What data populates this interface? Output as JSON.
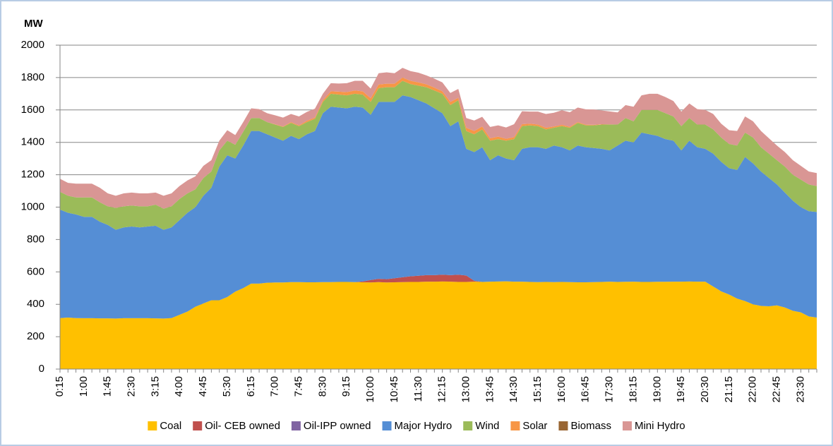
{
  "chart_data": {
    "type": "stacked_area",
    "y_label": "MW",
    "categories": [
      "0:15",
      null,
      null,
      "1:00",
      null,
      null,
      "1:45",
      null,
      null,
      "2:30",
      null,
      null,
      "3:15",
      null,
      null,
      "4:00",
      null,
      null,
      "4:45",
      null,
      null,
      "5:30",
      null,
      null,
      "6:15",
      null,
      null,
      "7:00",
      null,
      null,
      "7:45",
      null,
      null,
      "8:30",
      null,
      null,
      "9:15",
      null,
      null,
      "10:00",
      null,
      null,
      "10:45",
      null,
      null,
      "11:30",
      null,
      null,
      "12:15",
      null,
      null,
      "13:00",
      null,
      null,
      "13:45",
      null,
      null,
      "14:30",
      null,
      null,
      "15:15",
      null,
      null,
      "16:00",
      null,
      null,
      "16:45",
      null,
      null,
      "17:30",
      null,
      null,
      "18:15",
      null,
      null,
      "19:00",
      null,
      null,
      "19:45",
      null,
      null,
      "20:30",
      null,
      null,
      "21:15",
      null,
      null,
      "22:00",
      null,
      null,
      "22:45",
      null,
      null,
      "23:30",
      null,
      null
    ],
    "series": [
      {
        "name": "Coal",
        "color": "#ffc000",
        "values": [
          315,
          318,
          315,
          314,
          314,
          313,
          313,
          312,
          314,
          314,
          314,
          314,
          313,
          312,
          315,
          335,
          355,
          385,
          405,
          425,
          425,
          445,
          478,
          500,
          528,
          528,
          533,
          535,
          535,
          537,
          537,
          536,
          536,
          537,
          537,
          538,
          538,
          537,
          536,
          535,
          537,
          535,
          536,
          537,
          538,
          538,
          540,
          540,
          541,
          540,
          538,
          538,
          540,
          538,
          540,
          541,
          542,
          540,
          540,
          538,
          537,
          538,
          537,
          538,
          537,
          536,
          536,
          537,
          538,
          540,
          538,
          539,
          540,
          538,
          538,
          539,
          539,
          540,
          540,
          541,
          540,
          540,
          510,
          480,
          460,
          435,
          420,
          400,
          390,
          388,
          393,
          380,
          360,
          350,
          325,
          318
        ]
      },
      {
        "name": "Oil- CEB owned",
        "color": "#c0504d",
        "values": [
          0,
          0,
          0,
          0,
          0,
          0,
          0,
          0,
          0,
          0,
          0,
          0,
          0,
          0,
          0,
          0,
          0,
          0,
          0,
          0,
          0,
          0,
          0,
          0,
          0,
          0,
          0,
          0,
          0,
          0,
          0,
          0,
          0,
          0,
          0,
          0,
          0,
          0,
          5,
          15,
          20,
          20,
          25,
          30,
          35,
          38,
          40,
          40,
          42,
          40,
          45,
          40,
          5,
          0,
          0,
          0,
          0,
          0,
          0,
          0,
          0,
          0,
          0,
          0,
          0,
          0,
          0,
          0,
          0,
          0,
          0,
          0,
          0,
          0,
          0,
          0,
          0,
          0,
          0,
          0,
          0,
          0,
          0,
          0,
          0,
          0,
          0,
          0,
          0,
          0,
          0,
          0,
          0,
          0,
          0,
          0
        ]
      },
      {
        "name": "Oil-IPP owned",
        "color": "#8064a2",
        "values": [
          0,
          0,
          0,
          0,
          0,
          0,
          0,
          0,
          0,
          0,
          0,
          0,
          0,
          0,
          0,
          0,
          0,
          0,
          0,
          0,
          0,
          0,
          0,
          0,
          0,
          0,
          0,
          0,
          0,
          0,
          0,
          0,
          0,
          0,
          0,
          0,
          0,
          0,
          0,
          0,
          0,
          0,
          0,
          0,
          0,
          0,
          0,
          0,
          0,
          0,
          0,
          0,
          0,
          0,
          0,
          0,
          0,
          0,
          0,
          0,
          0,
          0,
          0,
          0,
          0,
          0,
          0,
          0,
          0,
          0,
          0,
          0,
          0,
          0,
          0,
          0,
          0,
          0,
          0,
          0,
          0,
          0,
          0,
          0,
          0,
          0,
          0,
          0,
          0,
          0,
          0,
          0,
          0,
          0,
          0,
          0
        ]
      },
      {
        "name": "Major Hydro",
        "color": "#558ed5",
        "values": [
          670,
          647,
          640,
          626,
          626,
          597,
          577,
          548,
          561,
          566,
          561,
          566,
          572,
          548,
          560,
          585,
          610,
          615,
          665,
          695,
          825,
          875,
          822,
          880,
          942,
          942,
          917,
          895,
          875,
          903,
          883,
          914,
          934,
          1043,
          1083,
          1077,
          1072,
          1083,
          1074,
          1020,
          1093,
          1095,
          1089,
          1123,
          1107,
          1084,
          1060,
          1030,
          997,
          920,
          947,
          782,
          795,
          832,
          750,
          779,
          758,
          750,
          820,
          832,
          833,
          822,
          843,
          832,
          813,
          844,
          834,
          828,
          822,
          810,
          842,
          871,
          860,
          922,
          912,
          901,
          881,
          870,
          810,
          869,
          830,
          820,
          820,
          800,
          780,
          795,
          890,
          870,
          830,
          792,
          747,
          710,
          680,
          650,
          650,
          652
        ]
      },
      {
        "name": "Wind",
        "color": "#9bbb59",
        "values": [
          110,
          105,
          105,
          120,
          120,
          120,
          115,
          135,
          130,
          130,
          130,
          125,
          130,
          130,
          130,
          130,
          120,
          110,
          110,
          100,
          100,
          90,
          85,
          85,
          80,
          80,
          75,
          80,
          85,
          80,
          80,
          75,
          75,
          70,
          80,
          80,
          80,
          80,
          80,
          80,
          85,
          90,
          90,
          90,
          80,
          90,
          100,
          110,
          120,
          130,
          130,
          110,
          110,
          110,
          120,
          100,
          110,
          130,
          140,
          135,
          130,
          120,
          110,
          130,
          140,
          140,
          135,
          140,
          150,
          160,
          130,
          140,
          130,
          140,
          150,
          160,
          160,
          150,
          150,
          140,
          140,
          150,
          150,
          150,
          150,
          150,
          150,
          160,
          150,
          150,
          150,
          160,
          160,
          170,
          165,
          160
        ]
      },
      {
        "name": "Solar",
        "color": "#f79646",
        "values": [
          0,
          0,
          0,
          0,
          0,
          0,
          0,
          0,
          0,
          0,
          0,
          0,
          0,
          0,
          0,
          0,
          0,
          0,
          0,
          0,
          0,
          0,
          0,
          0,
          0,
          0,
          0,
          2,
          3,
          5,
          5,
          8,
          8,
          10,
          15,
          18,
          20,
          20,
          20,
          22,
          22,
          22,
          22,
          20,
          20,
          20,
          18,
          18,
          15,
          20,
          15,
          20,
          20,
          18,
          15,
          15,
          12,
          12,
          12,
          10,
          10,
          10,
          8,
          8,
          6,
          5,
          4,
          3,
          2,
          1,
          0,
          0,
          0,
          0,
          0,
          0,
          0,
          0,
          0,
          0,
          0,
          0,
          0,
          0,
          0,
          0,
          0,
          0,
          0,
          0,
          0,
          0,
          0,
          0,
          0,
          0
        ]
      },
      {
        "name": "Biomass",
        "color": "#996633",
        "values": [
          0,
          0,
          0,
          0,
          0,
          0,
          0,
          0,
          0,
          0,
          0,
          0,
          0,
          0,
          0,
          0,
          0,
          0,
          0,
          0,
          0,
          0,
          0,
          0,
          0,
          0,
          0,
          0,
          0,
          0,
          0,
          0,
          0,
          0,
          0,
          0,
          0,
          0,
          0,
          0,
          0,
          0,
          0,
          0,
          0,
          0,
          0,
          0,
          0,
          0,
          0,
          0,
          0,
          0,
          0,
          0,
          0,
          0,
          0,
          0,
          0,
          0,
          0,
          0,
          0,
          0,
          0,
          0,
          0,
          0,
          0,
          0,
          0,
          0,
          0,
          0,
          0,
          0,
          0,
          0,
          0,
          0,
          0,
          0,
          0,
          0,
          0,
          0,
          0,
          0,
          0,
          0,
          0,
          0,
          0,
          0
        ]
      },
      {
        "name": "Mini Hydro",
        "color": "#d99694",
        "values": [
          80,
          80,
          85,
          85,
          85,
          90,
          80,
          75,
          80,
          80,
          80,
          80,
          75,
          80,
          80,
          80,
          80,
          80,
          75,
          70,
          60,
          65,
          60,
          60,
          60,
          55,
          55,
          55,
          55,
          50,
          55,
          55,
          55,
          40,
          50,
          50,
          55,
          60,
          65,
          60,
          70,
          70,
          65,
          60,
          60,
          60,
          55,
          55,
          55,
          55,
          55,
          60,
          65,
          60,
          70,
          70,
          70,
          80,
          80,
          75,
          80,
          85,
          85,
          90,
          90,
          90,
          95,
          95,
          85,
          80,
          75,
          80,
          90,
          90,
          100,
          100,
          100,
          95,
          90,
          90,
          95,
          90,
          95,
          85,
          85,
          90,
          100,
          100,
          100,
          95,
          90,
          90,
          90,
          85,
          80,
          80
        ]
      }
    ],
    "ylim": [
      0,
      2000
    ],
    "yticks": [
      0,
      200,
      400,
      600,
      800,
      1000,
      1200,
      1400,
      1600,
      1800,
      2000
    ],
    "grid": true
  }
}
